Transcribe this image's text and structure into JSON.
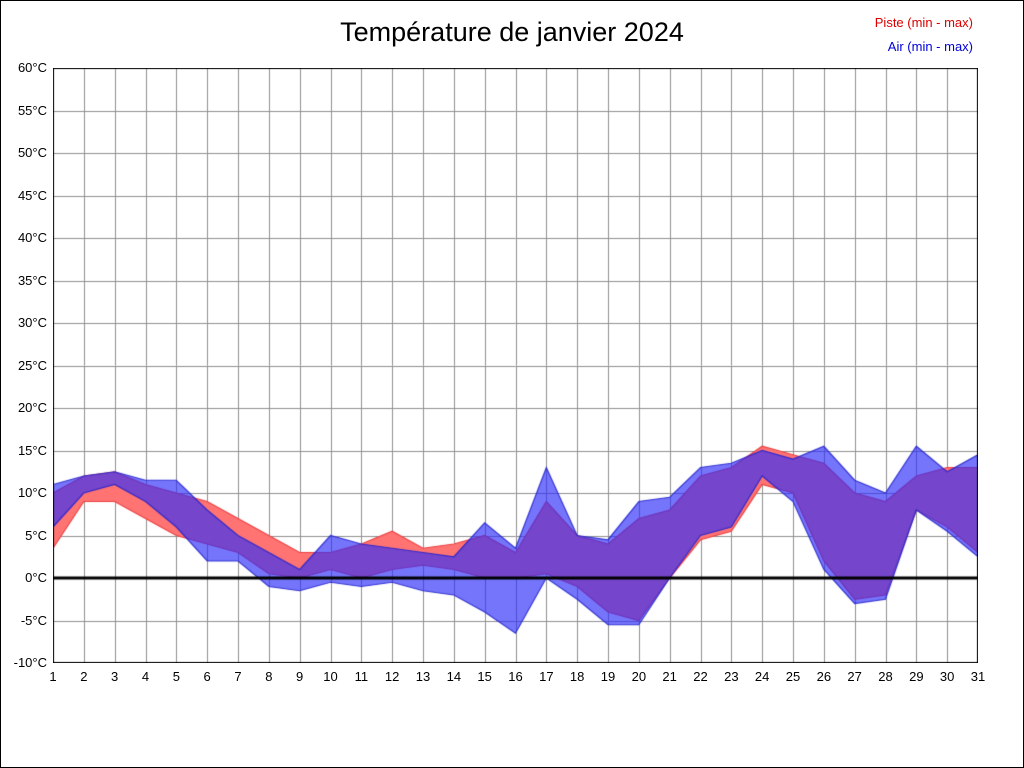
{
  "title": "Température de janvier 2024",
  "legend": [
    {
      "label": "Piste (min - max)",
      "color": "#dd0000"
    },
    {
      "label": "Air (min - max)",
      "color": "#0000dd"
    }
  ],
  "axis": {
    "y_suffix": "°C",
    "y_min": -10,
    "y_max": 60,
    "y_step": 5,
    "x_first": 1,
    "x_last": 31,
    "grid_color": "#909090",
    "zero_line_color": "#000000",
    "border_color": "#000000"
  },
  "chart_data": {
    "type": "area",
    "title": "Température de janvier 2024",
    "xlabel": "",
    "ylabel": "°C",
    "x": [
      1,
      2,
      3,
      4,
      5,
      6,
      7,
      8,
      9,
      10,
      11,
      12,
      13,
      14,
      15,
      16,
      17,
      18,
      19,
      20,
      21,
      22,
      23,
      24,
      25,
      26,
      27,
      28,
      29,
      30,
      31
    ],
    "ylim": [
      -10,
      60
    ],
    "ytick_step": 5,
    "grid": true,
    "legend_position": "top-right",
    "series": [
      {
        "name": "Piste (min - max)",
        "kind": "band",
        "fill": "#ff7373",
        "edge": "#ee4040",
        "alpha": 1,
        "min": [
          3.5,
          9,
          9,
          7,
          5,
          4,
          3,
          0.5,
          0,
          1,
          0,
          1,
          1.5,
          1,
          0,
          0,
          0.5,
          -1,
          -4,
          -5,
          0,
          4.5,
          5.5,
          11,
          10,
          2,
          -2.5,
          -2,
          8,
          6,
          3
        ],
        "max": [
          10,
          12,
          12.5,
          11,
          10,
          9,
          7,
          5,
          3,
          3,
          4,
          5.5,
          3.5,
          4,
          5,
          3,
          9,
          5,
          4,
          7,
          8,
          12,
          13,
          15.5,
          14.5,
          13.5,
          10,
          9,
          12,
          13,
          13
        ]
      },
      {
        "name": "Air (min - max)",
        "kind": "band",
        "fill": "#2d2dfa",
        "edge": "#2222cc",
        "alpha": 0.66,
        "min": [
          6,
          10,
          11,
          9,
          6,
          2,
          2,
          -1,
          -1.5,
          -0.5,
          -1,
          -0.5,
          -1.5,
          -2,
          -4,
          -6.5,
          0,
          -2.5,
          -5.5,
          -5.5,
          0,
          5,
          6,
          12,
          9,
          1,
          -3,
          -2.5,
          8,
          5.5,
          2.5
        ],
        "max": [
          11,
          12,
          12.5,
          11.5,
          11.5,
          8,
          5,
          3,
          1,
          5,
          4,
          3.5,
          3,
          2.5,
          6.5,
          3.5,
          13,
          5,
          4.5,
          9,
          9.5,
          13,
          13.5,
          15,
          14,
          15.5,
          11.5,
          10,
          15.5,
          12.5,
          14.5
        ]
      }
    ]
  }
}
